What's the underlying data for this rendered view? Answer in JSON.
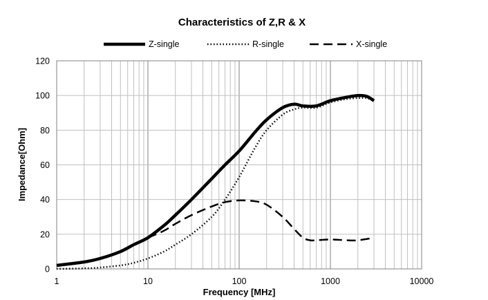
{
  "chart_data": {
    "type": "line",
    "title": "Characteristics of Z,R & X",
    "xlabel": "Frequency [MHz]",
    "ylabel": "Impedance[Ohm]",
    "x_scale": "log",
    "xlim": [
      1,
      10000
    ],
    "ylim": [
      0,
      120
    ],
    "x_ticks": [
      "1",
      "10",
      "100",
      "1000",
      "10000"
    ],
    "y_ticks": [
      "0",
      "20",
      "40",
      "60",
      "80",
      "100",
      "120"
    ],
    "grid": true,
    "legend_position": "top",
    "series": [
      {
        "name": "Z-single",
        "style": "solid",
        "x": [
          1,
          2,
          3,
          5,
          7,
          10,
          15,
          20,
          30,
          50,
          70,
          100,
          150,
          200,
          300,
          400,
          500,
          700,
          1000,
          1500,
          2000,
          2500,
          3000
        ],
        "y": [
          2,
          4,
          6,
          10,
          14,
          18,
          25,
          31,
          40,
          52,
          60,
          68,
          79,
          86,
          93,
          95,
          94,
          94,
          97,
          99,
          100,
          99.5,
          97
        ]
      },
      {
        "name": "R-single",
        "style": "dotted",
        "x": [
          1,
          2,
          3,
          5,
          7,
          10,
          15,
          20,
          30,
          50,
          70,
          100,
          150,
          200,
          300,
          400,
          500,
          700,
          1000,
          1500,
          2000,
          2500,
          3000
        ],
        "y": [
          0,
          0.3,
          0.8,
          2,
          3.5,
          6,
          10,
          14,
          20,
          30,
          40,
          53,
          70,
          80,
          89,
          92,
          93,
          93,
          96,
          98,
          98.5,
          98.5,
          97
        ]
      },
      {
        "name": "X-single",
        "style": "dashed",
        "x": [
          10,
          15,
          20,
          30,
          50,
          70,
          100,
          150,
          200,
          300,
          400,
          500,
          600,
          700,
          1000,
          1500,
          2000,
          3000
        ],
        "y": [
          18,
          22,
          26,
          31,
          36,
          38.5,
          39.5,
          39,
          37,
          30,
          23,
          18,
          16.5,
          16.5,
          17,
          16.5,
          16.5,
          18
        ]
      }
    ]
  }
}
